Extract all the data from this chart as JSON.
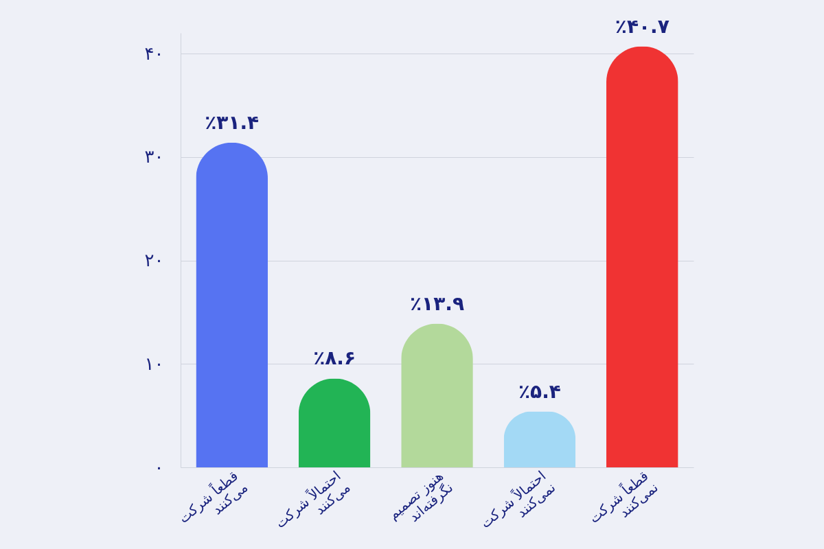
{
  "chart_data": {
    "type": "bar",
    "categories": [
      "قطعاً شرکت\nمی‌کنند",
      "احتمالاً شرکت\nمی‌کنند",
      "هنوز تصمیم\nنگرفته‌اند",
      "احتمالاً شرکت\nنمی‌کنند",
      "قطعاً شرکت\nنمی‌کنند"
    ],
    "values": [
      31.4,
      8.6,
      13.9,
      5.4,
      40.7
    ],
    "colors": [
      "#5673f2",
      "#22b455",
      "#b3d99b",
      "#a3d9f5",
      "#f03333"
    ],
    "value_labels": [
      "٪۳۱.۴",
      "٪۸.۶",
      "٪۱۳.۹",
      "٪۵.۴",
      "٪۴۰.۷"
    ],
    "ylim": [
      0,
      42
    ],
    "yticks": [
      {
        "value": 0,
        "label": "۰"
      },
      {
        "value": 10,
        "label": "۱۰"
      },
      {
        "value": 20,
        "label": "۲۰"
      },
      {
        "value": 30,
        "label": "۳۰"
      },
      {
        "value": 40,
        "label": "۴۰"
      }
    ],
    "grid": "y",
    "legend": false
  }
}
